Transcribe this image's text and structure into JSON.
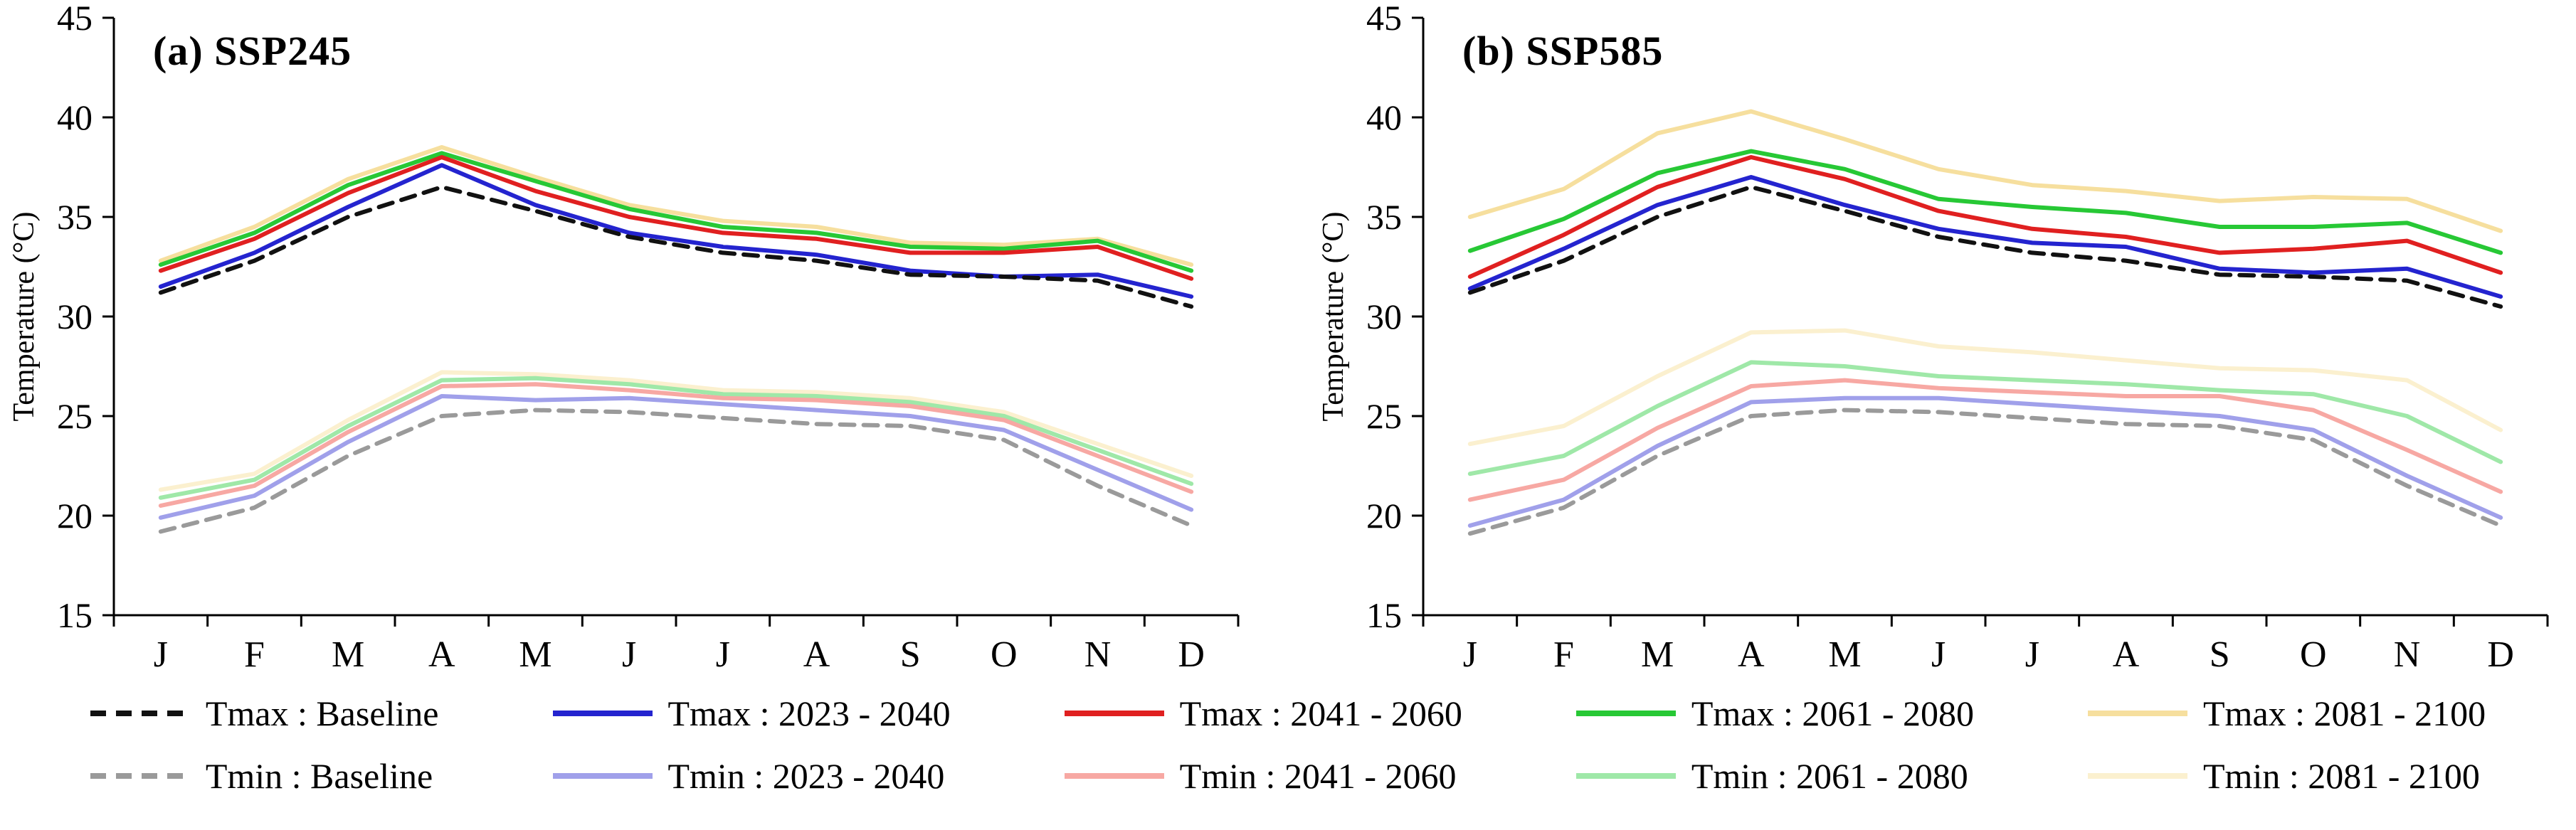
{
  "figure": {
    "background": "#ffffff"
  },
  "chart_data": [
    {
      "type": "line",
      "title": "(a) SSP245",
      "ylabel": "Temperature (°C)",
      "categories": [
        "J",
        "F",
        "M",
        "A",
        "M",
        "J",
        "J",
        "A",
        "S",
        "O",
        "N",
        "D"
      ],
      "ylim": [
        15,
        45
      ],
      "yticks": [
        15,
        20,
        25,
        30,
        35,
        40,
        45
      ],
      "grid": false,
      "legend_position": "bottom",
      "series": [
        {
          "name": "Tmin : 2081 - 2100",
          "color": "#fbf0cf",
          "values": [
            21.3,
            22.1,
            24.8,
            27.2,
            27.1,
            26.8,
            26.3,
            26.2,
            25.9,
            25.2,
            23.6,
            22.0
          ]
        },
        {
          "name": "Tmin : 2061 - 2080",
          "color": "#9fe8a8",
          "values": [
            20.9,
            21.8,
            24.5,
            26.8,
            26.9,
            26.6,
            26.1,
            26.0,
            25.7,
            25.0,
            23.3,
            21.6
          ]
        },
        {
          "name": "Tmin : 2041 - 2060",
          "color": "#f7a8a3",
          "values": [
            20.5,
            21.5,
            24.2,
            26.5,
            26.6,
            26.3,
            25.9,
            25.8,
            25.5,
            24.8,
            23.0,
            21.2
          ]
        },
        {
          "name": "Tmin : 2023 - 2040",
          "color": "#a0a0ea",
          "values": [
            19.9,
            21.0,
            23.7,
            26.0,
            25.8,
            25.9,
            25.6,
            25.3,
            25.0,
            24.3,
            22.3,
            20.3
          ]
        },
        {
          "name": "Tmin : Baseline",
          "color": "#9a9a9a",
          "dash": "20 13",
          "values": [
            19.2,
            20.4,
            23.0,
            25.0,
            25.3,
            25.2,
            24.9,
            24.6,
            24.5,
            23.8,
            21.5,
            19.5
          ]
        },
        {
          "name": "Tmax : 2081 - 2100",
          "color": "#f6df9e",
          "values": [
            32.8,
            34.5,
            36.9,
            38.5,
            37.0,
            35.6,
            34.8,
            34.5,
            33.7,
            33.6,
            33.9,
            32.6
          ]
        },
        {
          "name": "Tmax : 2061 - 2080",
          "color": "#27c835",
          "values": [
            32.6,
            34.2,
            36.6,
            38.2,
            36.8,
            35.4,
            34.5,
            34.2,
            33.5,
            33.4,
            33.8,
            32.3
          ]
        },
        {
          "name": "Tmax : 2041 - 2060",
          "color": "#e02020",
          "values": [
            32.3,
            33.9,
            36.2,
            38.0,
            36.3,
            35.0,
            34.2,
            33.9,
            33.2,
            33.2,
            33.5,
            31.9
          ]
        },
        {
          "name": "Tmax : 2023 - 2040",
          "color": "#2424cf",
          "values": [
            31.5,
            33.2,
            35.5,
            37.6,
            35.6,
            34.2,
            33.5,
            33.1,
            32.3,
            32.0,
            32.1,
            31.0
          ]
        },
        {
          "name": "Tmax : Baseline",
          "color": "#111111",
          "dash": "20 13",
          "values": [
            31.2,
            32.8,
            35.0,
            36.5,
            35.3,
            34.0,
            33.2,
            32.8,
            32.1,
            32.0,
            31.8,
            30.5
          ]
        }
      ]
    },
    {
      "type": "line",
      "title": "(b) SSP585",
      "ylabel": "Temperature (°C)",
      "categories": [
        "J",
        "F",
        "M",
        "A",
        "M",
        "J",
        "J",
        "A",
        "S",
        "O",
        "N",
        "D"
      ],
      "ylim": [
        15,
        45
      ],
      "yticks": [
        15,
        20,
        25,
        30,
        35,
        40,
        45
      ],
      "grid": false,
      "legend_position": "bottom",
      "series": [
        {
          "name": "Tmin : 2081 - 2100",
          "color": "#fbf0cf",
          "values": [
            23.6,
            24.5,
            27.0,
            29.2,
            29.3,
            28.5,
            28.2,
            27.8,
            27.4,
            27.3,
            26.8,
            24.3
          ]
        },
        {
          "name": "Tmin : 2061 - 2080",
          "color": "#9fe8a8",
          "values": [
            22.1,
            23.0,
            25.5,
            27.7,
            27.5,
            27.0,
            26.8,
            26.6,
            26.3,
            26.1,
            25.0,
            22.7
          ]
        },
        {
          "name": "Tmin : 2041 - 2060",
          "color": "#f7a8a3",
          "values": [
            20.8,
            21.8,
            24.4,
            26.5,
            26.8,
            26.4,
            26.2,
            26.0,
            26.0,
            25.3,
            23.3,
            21.2
          ]
        },
        {
          "name": "Tmin : 2023 - 2040",
          "color": "#a0a0ea",
          "values": [
            19.5,
            20.8,
            23.5,
            25.7,
            25.9,
            25.9,
            25.6,
            25.3,
            25.0,
            24.3,
            22.0,
            19.9
          ]
        },
        {
          "name": "Tmin : Baseline",
          "color": "#9a9a9a",
          "dash": "20 13",
          "values": [
            19.1,
            20.4,
            23.0,
            25.0,
            25.3,
            25.2,
            24.9,
            24.6,
            24.5,
            23.8,
            21.5,
            19.5
          ]
        },
        {
          "name": "Tmax : 2081 - 2100",
          "color": "#f6df9e",
          "values": [
            35.0,
            36.4,
            39.2,
            40.3,
            38.9,
            37.4,
            36.6,
            36.3,
            35.8,
            36.0,
            35.9,
            34.3
          ]
        },
        {
          "name": "Tmax : 2061 - 2080",
          "color": "#27c835",
          "values": [
            33.3,
            34.9,
            37.2,
            38.3,
            37.4,
            35.9,
            35.5,
            35.2,
            34.5,
            34.5,
            34.7,
            33.2
          ]
        },
        {
          "name": "Tmax : 2041 - 2060",
          "color": "#e02020",
          "values": [
            32.0,
            34.1,
            36.5,
            38.0,
            36.9,
            35.3,
            34.4,
            34.0,
            33.2,
            33.4,
            33.8,
            32.2
          ]
        },
        {
          "name": "Tmax : 2023 - 2040",
          "color": "#2424cf",
          "values": [
            31.4,
            33.4,
            35.6,
            37.0,
            35.6,
            34.4,
            33.7,
            33.5,
            32.4,
            32.2,
            32.4,
            31.0
          ]
        },
        {
          "name": "Tmax : Baseline",
          "color": "#111111",
          "dash": "20 13",
          "values": [
            31.2,
            32.8,
            35.0,
            36.5,
            35.3,
            34.0,
            33.2,
            32.8,
            32.1,
            32.0,
            31.8,
            30.5
          ]
        }
      ]
    }
  ],
  "legend": {
    "rows": [
      [
        {
          "label": "Tmax : Baseline",
          "color": "#111111",
          "dash": "22 14"
        },
        {
          "label": "Tmax : 2023 - 2040",
          "color": "#2424cf"
        },
        {
          "label": "Tmax : 2041 - 2060",
          "color": "#e02020"
        },
        {
          "label": "Tmax : 2061 - 2080",
          "color": "#27c835"
        },
        {
          "label": "Tmax : 2081 - 2100",
          "color": "#f6df9e"
        }
      ],
      [
        {
          "label": "Tmin : Baseline",
          "color": "#9a9a9a",
          "dash": "22 14"
        },
        {
          "label": "Tmin : 2023 - 2040",
          "color": "#a0a0ea"
        },
        {
          "label": "Tmin : 2041 - 2060",
          "color": "#f7a8a3"
        },
        {
          "label": "Tmin : 2061 - 2080",
          "color": "#9fe8a8"
        },
        {
          "label": "Tmin : 2081 - 2100",
          "color": "#fbf0cf"
        }
      ]
    ]
  }
}
